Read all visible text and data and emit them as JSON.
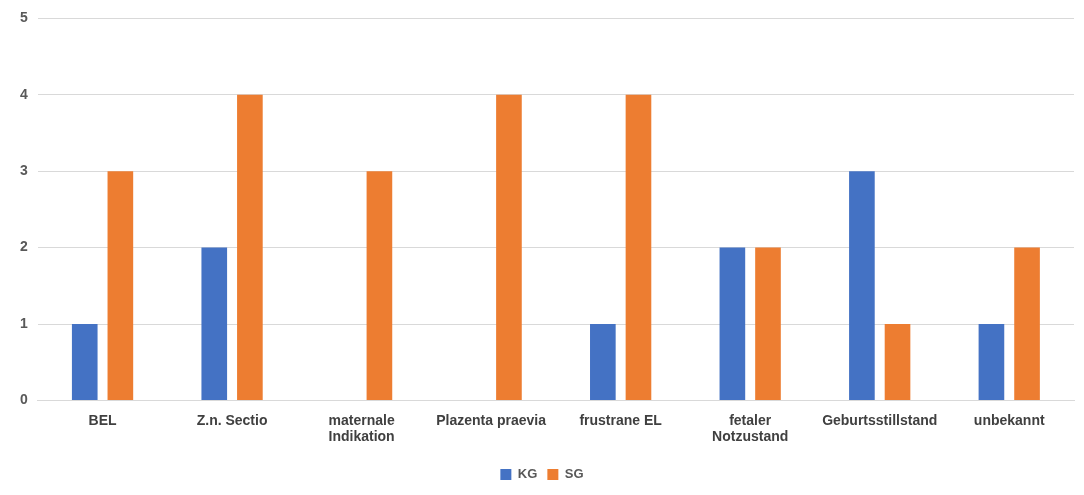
{
  "chart_data": {
    "type": "bar",
    "categories": [
      "BEL",
      "Z.n. Sectio",
      "maternale Indikation",
      "Plazenta praevia",
      "frustrane EL",
      "fetaler Notzustand",
      "Geburtsstillstand",
      "unbekannt"
    ],
    "series": [
      {
        "name": "KG",
        "color": "#4472c4",
        "values": [
          1,
          2,
          0,
          0,
          1,
          2,
          3,
          1
        ]
      },
      {
        "name": "SG",
        "color": "#ed7d31",
        "values": [
          3,
          4,
          3,
          4,
          4,
          2,
          1,
          2
        ]
      }
    ],
    "ylim": [
      0,
      5
    ],
    "yticks": [
      0,
      1,
      2,
      3,
      4,
      5
    ],
    "grid": "y",
    "legend": "bottom"
  }
}
